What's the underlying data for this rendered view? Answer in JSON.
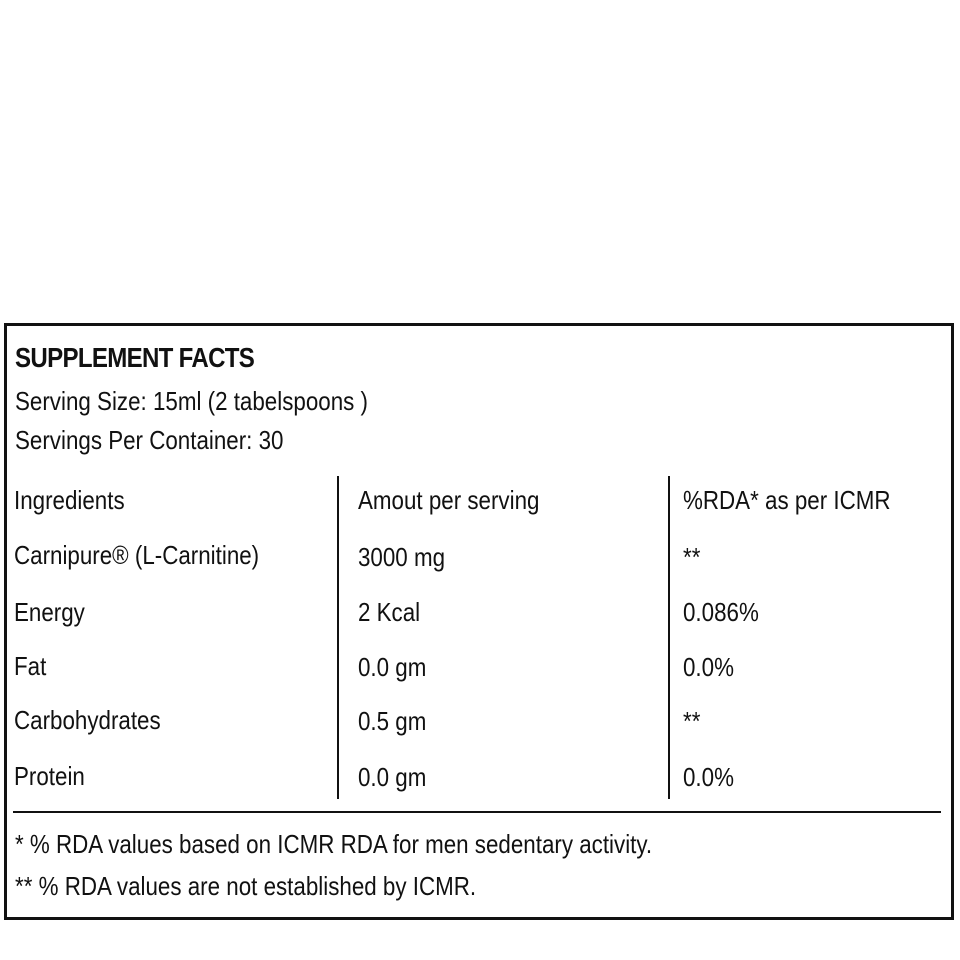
{
  "panel": {
    "title": "SUPPLEMENT FACTS",
    "serving_size": "Serving Size: 15ml (2 tabelspoons )",
    "servings_per_container": "Servings Per Container: 30"
  },
  "table": {
    "headers": [
      "Ingredients",
      "Amout per serving",
      "%RDA* as per ICMR"
    ],
    "rows": [
      [
        "Carnipure® (L-Carnitine)",
        "3000 mg",
        "**"
      ],
      [
        "Energy",
        "2 Kcal",
        "0.086%"
      ],
      [
        "Fat",
        "0.0 gm",
        "0.0%"
      ],
      [
        "Carbohydrates",
        "0.5 gm",
        "**"
      ],
      [
        "Protein",
        "0.0 gm",
        "0.0%"
      ]
    ]
  },
  "footnotes": {
    "note1": "* % RDA values based on ICMR RDA for men sedentary activity.",
    "note2": "** % RDA values are not established by ICMR."
  }
}
